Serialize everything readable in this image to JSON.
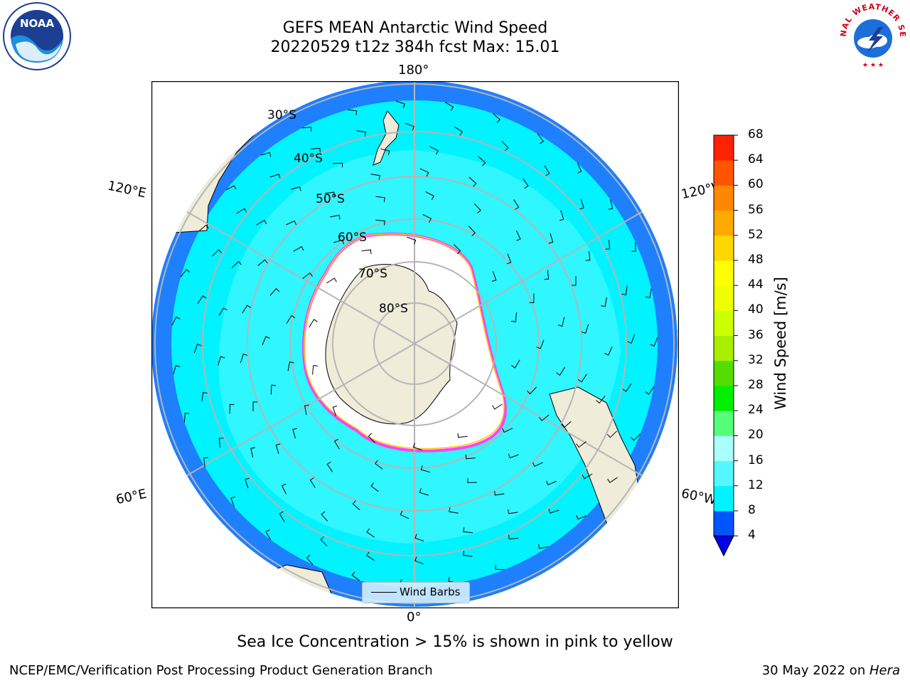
{
  "header": {
    "title_line1": "GEFS MEAN Antarctic Wind Speed",
    "title_line2": "20220529 t12z 384h fcst   Max: 15.01"
  },
  "logos": {
    "left": "NOAA",
    "right": "NATIONAL WEATHER SERVICE"
  },
  "map": {
    "longitude_labels": {
      "top": "180°",
      "bottom": "0°",
      "upper_left": "120°E",
      "lower_left": "60°E",
      "upper_right": "120°W",
      "lower_right": "60°W"
    },
    "latitude_labels": [
      "30°S",
      "40°S",
      "50°S",
      "60°S",
      "70°S",
      "80°S"
    ],
    "legend_label": "Wind Barbs",
    "colors": {
      "land": "#efecda",
      "ocean_low": "#1e7fff",
      "ocean_mid": "#00f3ff",
      "ocean_high": "#55f7ff",
      "sea_ice_edge": "#ff40ff",
      "sea_ice_inner": "#ffc800"
    }
  },
  "colorbar": {
    "label": "Wind Speed [m/s]",
    "ticks": [
      "4",
      "8",
      "12",
      "16",
      "20",
      "24",
      "28",
      "32",
      "36",
      "40",
      "44",
      "48",
      "52",
      "56",
      "60",
      "64",
      "68"
    ],
    "colors": [
      "#0055ff",
      "#00f3ff",
      "#55f7ff",
      "#aaffff",
      "#55ff77",
      "#00ee00",
      "#55dd00",
      "#aaee00",
      "#ccff00",
      "#eeff00",
      "#ffff00",
      "#ffd700",
      "#ffaa00",
      "#ff8800",
      "#ff5500",
      "#ff2200"
    ],
    "underflow_color": "#0000ee"
  },
  "footer": {
    "caption": "Sea Ice Concentration > 15% is shown in pink to yellow",
    "left": "NCEP/EMC/Verification Post Processing Product Generation Branch",
    "right_date": "30 May 2022 on ",
    "right_host": "Hera"
  }
}
